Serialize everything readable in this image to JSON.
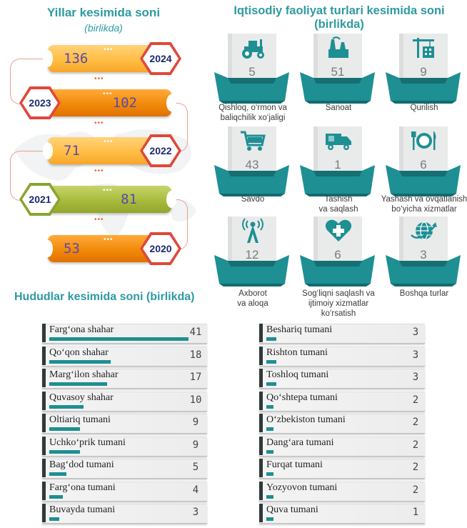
{
  "years_section": {
    "title": "Yillar kesimida soni",
    "subtitle": "(birlikda)"
  },
  "activity_section": {
    "title_line1": "Iqtisodiy faoliyat turlari kesimida soni",
    "title_line2": "(birlikda)"
  },
  "regions_section": {
    "title": "Hududlar kesimida soni (birlikda)"
  },
  "colors": {
    "teal": "#1e8f93",
    "heading": "#2e9aa1",
    "orange": "#f28a0a",
    "olive": "#a9bb3c",
    "hex_red": "#e0483a"
  },
  "chart_data": [
    {
      "type": "bar",
      "title": "Yillar kesimida soni",
      "subtitle": "(birlikda)",
      "categories": [
        "2024",
        "2023",
        "2022",
        "2021",
        "2020"
      ],
      "values": [
        136,
        102,
        71,
        81,
        53
      ]
    },
    {
      "type": "table",
      "title": "Iqtisodiy faoliyat turlari kesimida soni (birlikda)",
      "categories": [
        "Qishloq, o‘rmon va baliqchilik xo‘jaligi",
        "Sanoat",
        "Qurilish",
        "Savdo",
        "Tashish va saqlash",
        "Yashash va ovqatlanish bo‘yicha xizmatlar",
        "Axborot va aloqa",
        "Sog‘liqni saqlash va ijtimoiy xizmatlar ko‘rsatish",
        "Boshqa turlar"
      ],
      "values": [
        5,
        51,
        9,
        43,
        1,
        6,
        12,
        6,
        3
      ],
      "icons": [
        "tractor-icon",
        "factory-icon",
        "crane-icon",
        "cart-icon",
        "truck-icon",
        "dining-icon",
        "antenna-icon",
        "medical-heart-icon",
        "globe-icon"
      ],
      "label_lines": [
        [
          "Qishloq, o‘rmon va",
          "baliqchilik xo‘jaligi"
        ],
        [
          "Sanoat"
        ],
        [
          "Qurilish"
        ],
        [
          "Savdo"
        ],
        [
          "Tashish",
          "va saqlash"
        ],
        [
          "Yashash va ovqatlanish",
          "bo‘yicha xizmatlar"
        ],
        [
          "Axborot",
          "va aloqa"
        ],
        [
          "Sog‘liqni saqlash va",
          "ijtimoiy xizmatlar",
          "ko‘rsatish"
        ],
        [
          "Boshqa turlar"
        ]
      ]
    },
    {
      "type": "bar",
      "title": "Hududlar kesimida soni (birlikda)",
      "categories": [
        "Farg‘ona shahar",
        "Qo‘qon shahar",
        "Marg‘ilon shahar",
        "Quvasoy shahar",
        "Oltiariq tumani",
        "Uchko‘prik tumani",
        "Bag‘dod tumani",
        "Farg‘ona tumani",
        "Buvayda tumani",
        "Beshariq tumani",
        "Rishton tumani",
        "Toshloq tumani",
        "Qo‘shtepa tumani",
        "O‘zbekiston tumani",
        "Dang‘ara tumani",
        "Furqat tumani",
        "Yozyovon tumani",
        "Quva tumani"
      ],
      "values": [
        41,
        18,
        17,
        10,
        9,
        9,
        5,
        4,
        3,
        3,
        3,
        3,
        2,
        2,
        2,
        2,
        2,
        1
      ]
    }
  ]
}
